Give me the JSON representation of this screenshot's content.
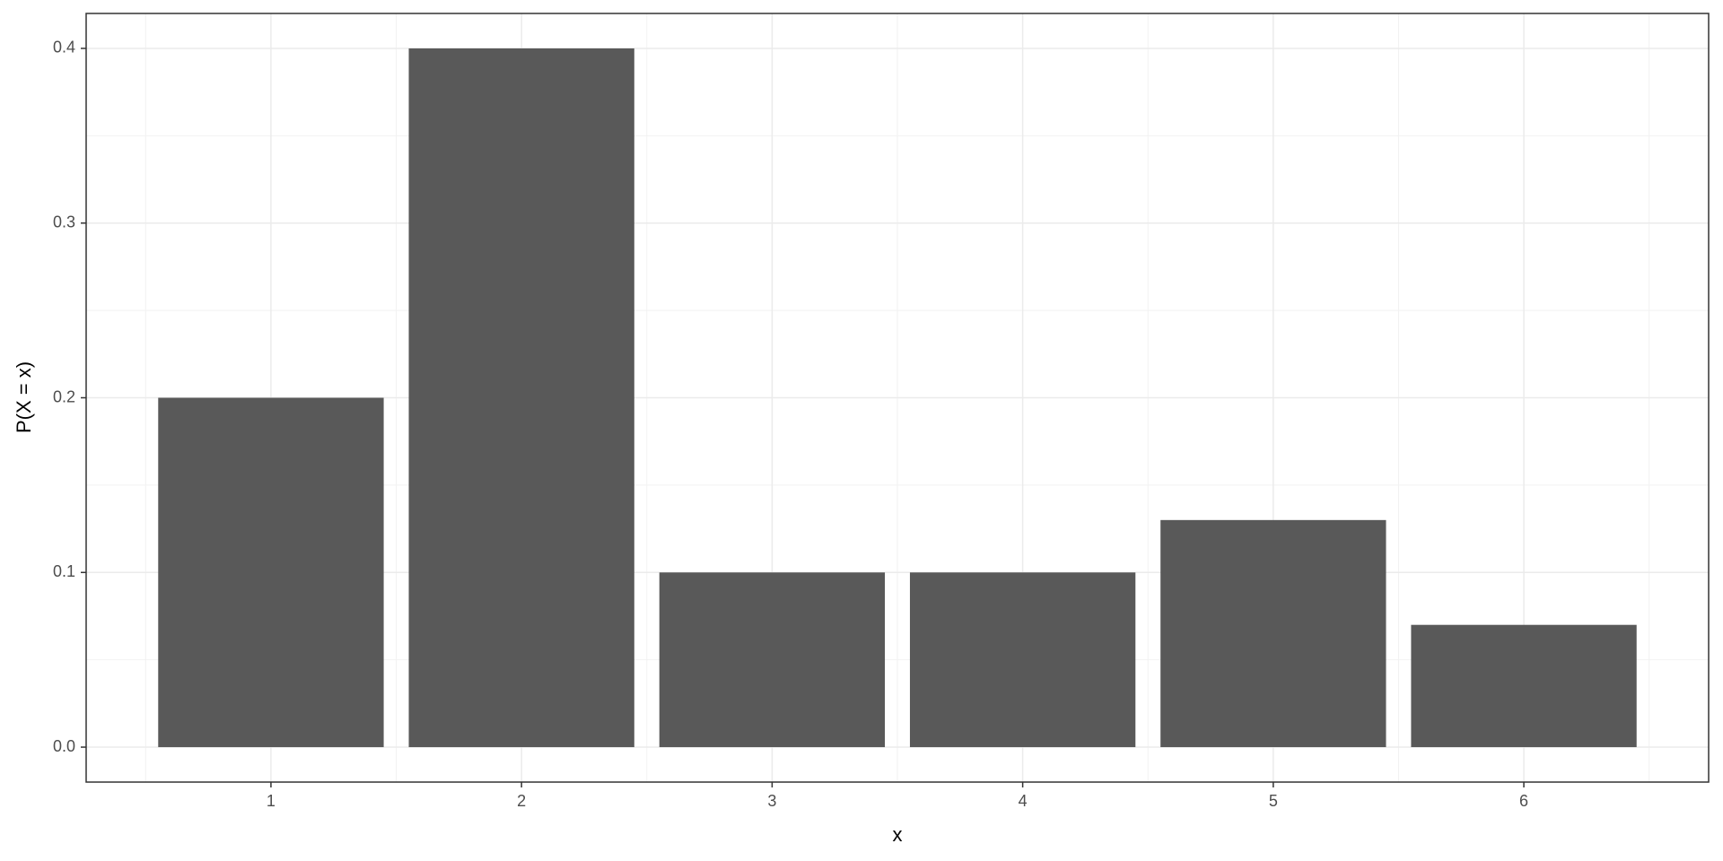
{
  "chart_data": {
    "type": "bar",
    "x_label": "x",
    "y_label": "P(X = x)",
    "categories": [
      "1",
      "2",
      "3",
      "4",
      "5",
      "6"
    ],
    "values": [
      0.2,
      0.4,
      0.1,
      0.1,
      0.13,
      0.07
    ],
    "color": "#595959",
    "ylim": [
      -0.02,
      0.42
    ],
    "yticks": [
      {
        "value": 0,
        "label": "0.0"
      },
      0.1,
      0.2,
      0.3,
      0.4
    ],
    "grid": true
  }
}
